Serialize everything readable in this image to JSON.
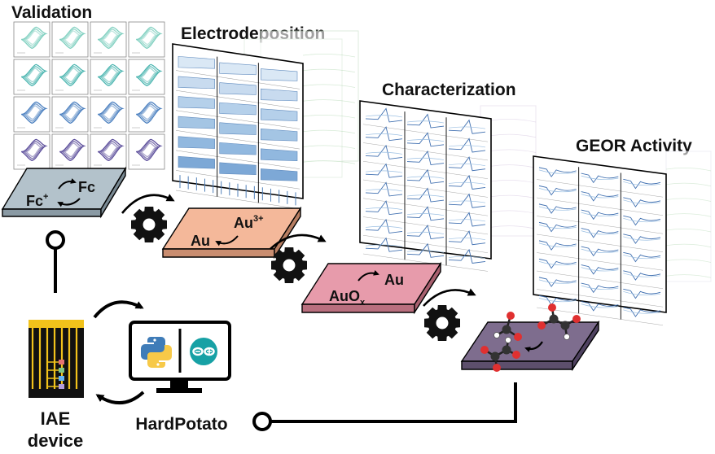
{
  "stages": {
    "validation": {
      "title": "Validation"
    },
    "electrodeposition": {
      "title": "Electrodeposition"
    },
    "characterization": {
      "title": "Characterization"
    },
    "geor": {
      "title": "GEOR Activity"
    }
  },
  "plates": {
    "ferrocene": {
      "top": "Fc",
      "bottom": "Fc",
      "bottom_sup": "+",
      "color": "#b3c2cb"
    },
    "gold_reduction": {
      "top": "Au",
      "top_sup": "3+",
      "bottom": "Au",
      "color": "#f4b89a"
    },
    "gold_oxidation": {
      "top": "Au",
      "bottom": "AuO",
      "bottom_sub": "x",
      "color": "#e79bab"
    },
    "glycerol": {
      "color": "#7e6d8e"
    }
  },
  "devices": {
    "iae_line1": "IAE",
    "iae_line2": "device",
    "software": "HardPotato"
  },
  "icons": [
    "gear-icon",
    "python-logo-icon",
    "arduino-logo-icon",
    "monitor-icon",
    "molecule-icon"
  ],
  "colors": {
    "validation_palette": [
      "#7ecfbf",
      "#4bb5b0",
      "#4a7fbf",
      "#5a4c9a"
    ],
    "electro_blue": "#5a95cc",
    "line_blue": "#3f6fb0"
  }
}
